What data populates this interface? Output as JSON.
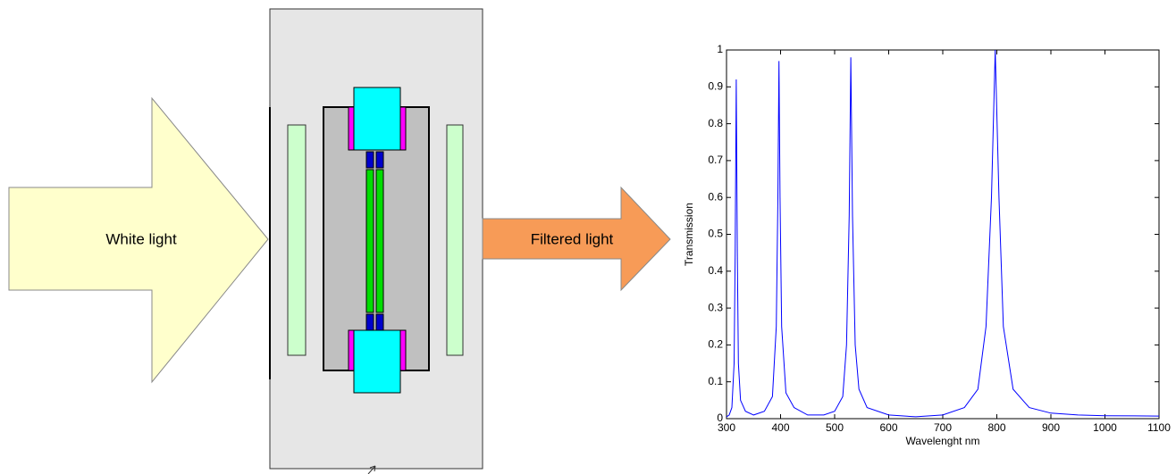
{
  "diagram": {
    "input_label": "White light",
    "output_label": "Filtered light"
  },
  "chart_data": {
    "type": "line",
    "xlabel": "Wavelenght nm",
    "ylabel": "Transmission",
    "xlim": [
      300,
      1100
    ],
    "xticks": [
      300,
      400,
      500,
      600,
      700,
      800,
      900,
      1000,
      1100
    ],
    "ylim": [
      0,
      1
    ],
    "yticks": [
      0,
      0.1,
      0.2,
      0.3,
      0.4,
      0.5,
      0.6,
      0.7,
      0.8,
      0.9,
      1
    ],
    "x": [
      300,
      305,
      310,
      314,
      316,
      318,
      320,
      322,
      326,
      335,
      350,
      370,
      385,
      392,
      395,
      397,
      399,
      402,
      410,
      425,
      450,
      480,
      500,
      515,
      522,
      527,
      530,
      533,
      538,
      545,
      560,
      600,
      650,
      700,
      740,
      765,
      780,
      790,
      797,
      804,
      812,
      830,
      860,
      900,
      950,
      1000,
      1100
    ],
    "series": [
      {
        "color": "#0000ff",
        "values": [
          0.005,
          0.01,
          0.03,
          0.15,
          0.45,
          0.92,
          0.45,
          0.15,
          0.05,
          0.02,
          0.01,
          0.02,
          0.06,
          0.25,
          0.6,
          0.97,
          0.6,
          0.25,
          0.07,
          0.03,
          0.01,
          0.01,
          0.02,
          0.06,
          0.2,
          0.55,
          0.98,
          0.55,
          0.2,
          0.08,
          0.03,
          0.01,
          0.005,
          0.01,
          0.03,
          0.08,
          0.25,
          0.6,
          1.0,
          0.6,
          0.25,
          0.08,
          0.03,
          0.015,
          0.01,
          0.008,
          0.007
        ]
      }
    ]
  }
}
